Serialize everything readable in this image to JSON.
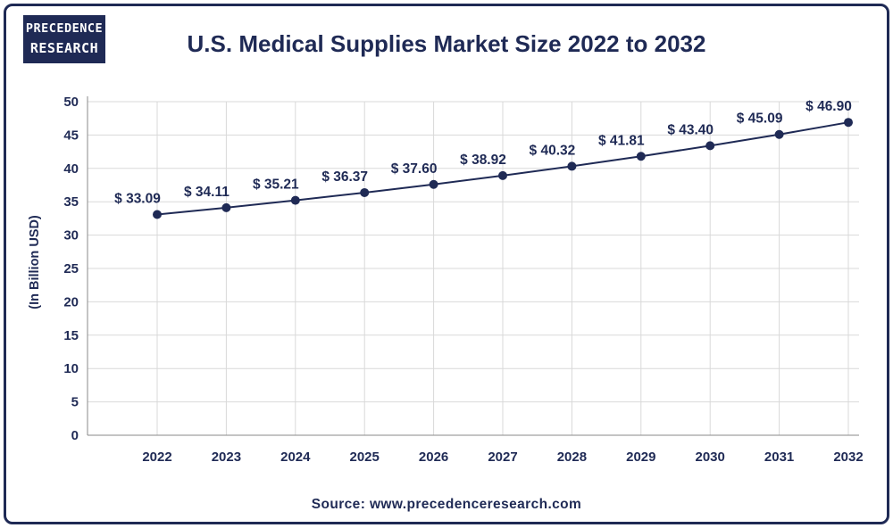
{
  "brand": {
    "line1": "PRECEDENCE",
    "line2": "RESEARCH"
  },
  "chart_data": {
    "type": "line",
    "title": "U.S. Medical Supplies Market Size 2022 to 2032",
    "ylabel": "(In Billion USD)",
    "xlabel": "",
    "categories": [
      "2022",
      "2023",
      "2024",
      "2025",
      "2026",
      "2027",
      "2028",
      "2029",
      "2030",
      "2031",
      "2032"
    ],
    "series": [
      {
        "values": [
          33.09,
          34.11,
          35.21,
          36.37,
          37.6,
          38.92,
          40.32,
          41.81,
          43.4,
          45.09,
          46.9
        ]
      }
    ],
    "data_labels": [
      "$ 33.09",
      "$ 34.11",
      "$ 35.21",
      "$ 36.37",
      "$ 37.60",
      "$ 38.92",
      "$ 40.32",
      "$ 41.81",
      "$ 43.40",
      "$ 45.09",
      "$ 46.90"
    ],
    "yticks": [
      0,
      5,
      10,
      15,
      20,
      25,
      30,
      35,
      40,
      45,
      50
    ],
    "ylim": [
      0,
      50
    ],
    "grid": true,
    "legend": "none",
    "colors": {
      "line": "#1f2a55",
      "grid": "#d9d9d9",
      "text": "#1f2a55"
    }
  },
  "source": "Source: www.precedenceresearch.com"
}
